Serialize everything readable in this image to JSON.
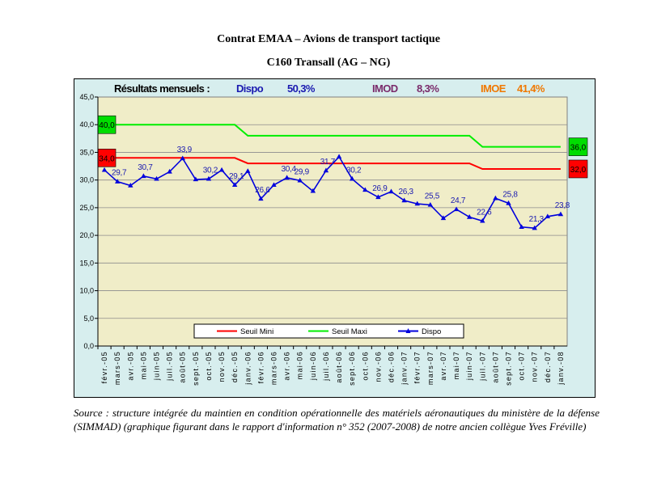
{
  "header": {
    "title": "Contrat EMAA – Avions de transport tactique",
    "subtitle": "C160 Transall (AG – NG)"
  },
  "chart_data": {
    "type": "line",
    "summary": {
      "label": "Résultats mensuels :",
      "dispo_label": "Dispo",
      "dispo_value": "50,3%",
      "imod_label": "IMOD",
      "imod_value": "8,3%",
      "imoe_label": "IMOE",
      "imoe_value": "41,4%"
    },
    "categories": [
      "févr.-05",
      "mars-05",
      "avr.-05",
      "mai-05",
      "juin-05",
      "juil.-05",
      "août-05",
      "sept.-05",
      "oct.-05",
      "nov.-05",
      "déc.-05",
      "janv.-06",
      "févr.-06",
      "mars-06",
      "avr.-06",
      "mai-06",
      "juin-06",
      "juil.-06",
      "août-06",
      "sept.-06",
      "oct.-06",
      "nov.-06",
      "déc.-06",
      "janv.-07",
      "févr.-07",
      "mars-07",
      "avr.-07",
      "mai-07",
      "juin-07",
      "juil.-07",
      "août-07",
      "sept.-07",
      "oct.-07",
      "nov.-07",
      "déc.-07",
      "janv.-08"
    ],
    "series": [
      {
        "name": "Seuil Mini",
        "color": "#ff0000",
        "values": [
          34,
          34,
          34,
          34,
          34,
          34,
          34,
          34,
          34,
          34,
          34,
          33,
          33,
          33,
          33,
          33,
          33,
          33,
          33,
          33,
          33,
          33,
          33,
          33,
          33,
          33,
          33,
          33,
          33,
          32,
          32,
          32,
          32,
          32,
          32,
          32
        ]
      },
      {
        "name": "Seuil Maxi",
        "color": "#00ee00",
        "values": [
          40,
          40,
          40,
          40,
          40,
          40,
          40,
          40,
          40,
          40,
          40,
          38,
          38,
          38,
          38,
          38,
          38,
          38,
          38,
          38,
          38,
          38,
          38,
          38,
          38,
          38,
          38,
          38,
          38,
          36,
          36,
          36,
          36,
          36,
          36,
          36
        ]
      },
      {
        "name": "Dispo",
        "color": "#0000dd",
        "values": [
          31.8,
          29.7,
          29.0,
          30.7,
          30.2,
          31.5,
          33.9,
          30.1,
          30.2,
          31.8,
          29.1,
          31.6,
          26.6,
          29.1,
          30.4,
          29.9,
          28.0,
          31.7,
          34.2,
          30.2,
          28.2,
          26.9,
          27.9,
          26.3,
          25.7,
          25.5,
          23.1,
          24.7,
          23.3,
          22.6,
          26.7,
          25.8,
          21.5,
          21.3,
          23.4,
          23.8
        ]
      }
    ],
    "data_labels": [
      {
        "index": 1,
        "text": "29,7"
      },
      {
        "index": 3,
        "text": "30,7"
      },
      {
        "index": 6,
        "text": "33,9"
      },
      {
        "index": 8,
        "text": "30,2"
      },
      {
        "index": 10,
        "text": "29,1"
      },
      {
        "index": 12,
        "text": "26,6"
      },
      {
        "index": 14,
        "text": "30,4"
      },
      {
        "index": 15,
        "text": "29,9"
      },
      {
        "index": 17,
        "text": "31,7"
      },
      {
        "index": 19,
        "text": "30,2"
      },
      {
        "index": 21,
        "text": "26,9"
      },
      {
        "index": 23,
        "text": "26,3"
      },
      {
        "index": 25,
        "text": "25,5"
      },
      {
        "index": 27,
        "text": "24,7"
      },
      {
        "index": 29,
        "text": "22,6"
      },
      {
        "index": 31,
        "text": "25,8"
      },
      {
        "index": 33,
        "text": "21,3"
      },
      {
        "index": 35,
        "text": "23,8"
      }
    ],
    "threshold_tags": [
      {
        "text": "40,0",
        "side": "left",
        "value": 40,
        "color": "#00dd00"
      },
      {
        "text": "34,0",
        "side": "left",
        "value": 34,
        "color": "#ff0000"
      },
      {
        "text": "36,0",
        "side": "right",
        "value": 36,
        "color": "#00dd00"
      },
      {
        "text": "32,0",
        "side": "right",
        "value": 32,
        "color": "#ff0000"
      }
    ],
    "yticks": [
      "0,0",
      "5,0",
      "10,0",
      "15,0",
      "20,0",
      "25,0",
      "30,0",
      "35,0",
      "40,0",
      "45,0"
    ],
    "ylim": [
      0,
      45
    ],
    "legend": [
      "Seuil Mini",
      "Seuil Maxi",
      "Dispo"
    ],
    "legend_position": "bottom-center"
  },
  "source": "Source : structure intégrée du maintien en condition opérationnelle des matériels aéronautiques du ministère de la défense (SIMMAD) (graphique figurant dans le rapport d'information n° 352 (2007-2008) de notre ancien collègue Yves Fréville)"
}
